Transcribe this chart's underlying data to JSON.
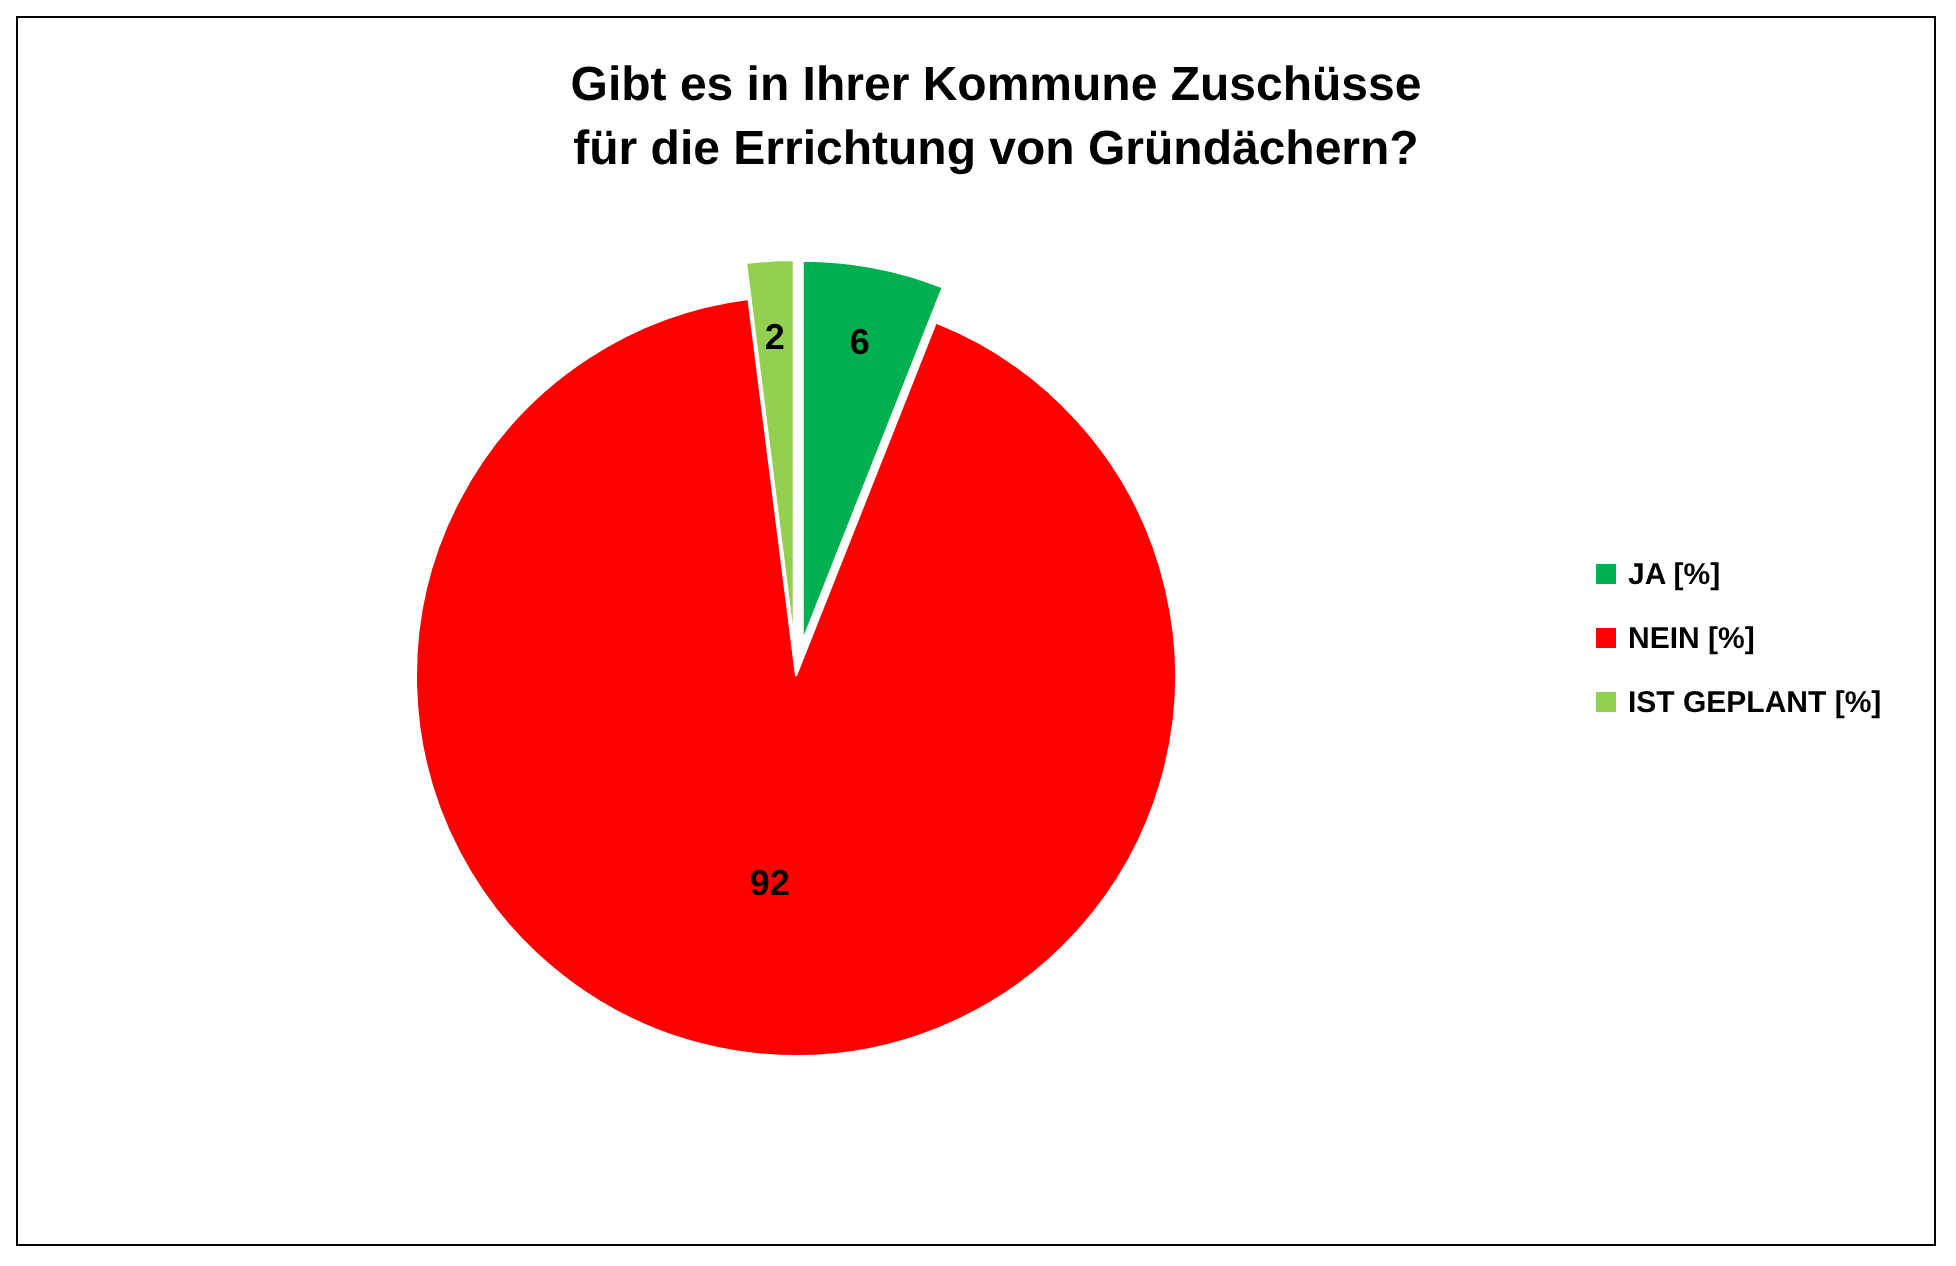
{
  "chart_data": {
    "type": "pie",
    "title": "Gibt es in Ihrer Kommune Zuschüsse\nfür die Errichtung von Gründächern?",
    "categories": [
      "JA [%]",
      "NEIN [%]",
      "IST GEPLANT [%]"
    ],
    "values": [
      6,
      92,
      2
    ],
    "colors": [
      "#00b050",
      "#ff0000",
      "#92d050"
    ],
    "data_labels": true,
    "legend": "right"
  }
}
